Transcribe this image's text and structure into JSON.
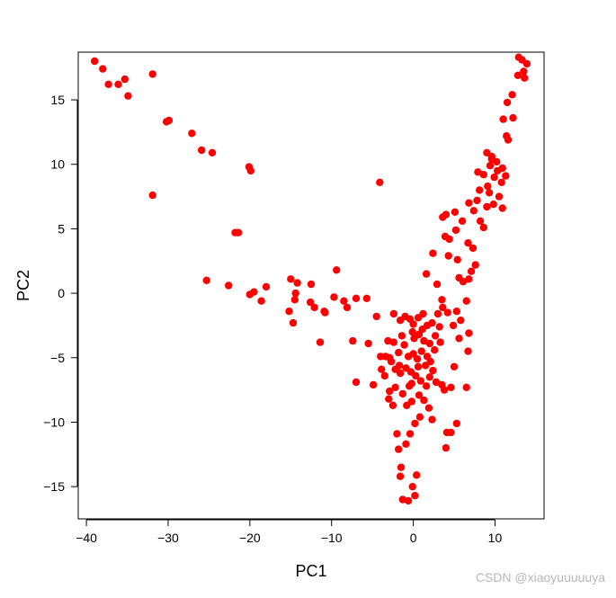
{
  "chart_data": {
    "type": "scatter",
    "xlabel": "PC1",
    "ylabel": "PC2",
    "xlim": [
      -41,
      16
    ],
    "ylim": [
      -17.5,
      18.7
    ],
    "x_ticks": [
      -40,
      -30,
      -20,
      -10,
      0,
      10
    ],
    "y_ticks": [
      -15,
      -10,
      -5,
      0,
      5,
      10,
      15
    ],
    "x_tick_labels": [
      "−40",
      "−30",
      "−20",
      "−10",
      "0",
      "10"
    ],
    "y_tick_labels": [
      "−15",
      "−10",
      "−5",
      "0",
      "5",
      "10",
      "15"
    ],
    "grid": false,
    "legend": "none",
    "marker_color": "#ff0000",
    "series": [
      {
        "points": [
          [
            -39.0,
            18.0
          ],
          [
            -38.0,
            17.4
          ],
          [
            -37.3,
            16.2
          ],
          [
            -36.1,
            16.2
          ],
          [
            -35.3,
            16.6
          ],
          [
            -34.9,
            15.3
          ],
          [
            -31.9,
            17.0
          ],
          [
            -30.2,
            13.3
          ],
          [
            -29.9,
            13.4
          ],
          [
            -27.1,
            12.4
          ],
          [
            -25.9,
            11.1
          ],
          [
            -24.6,
            10.9
          ],
          [
            -31.9,
            7.6
          ],
          [
            -20.1,
            9.8
          ],
          [
            -19.9,
            9.5
          ],
          [
            -21.8,
            4.7
          ],
          [
            -21.4,
            4.7
          ],
          [
            -25.3,
            1.0
          ],
          [
            -22.6,
            0.6
          ],
          [
            -20.0,
            -0.1
          ],
          [
            -19.5,
            0.1
          ],
          [
            -18.6,
            -0.6
          ],
          [
            -18.0,
            0.5
          ],
          [
            -15.0,
            1.1
          ],
          [
            -14.4,
            0.0
          ],
          [
            -14.2,
            0.8
          ],
          [
            -14.5,
            -0.5
          ],
          [
            -15.2,
            -1.4
          ],
          [
            -14.7,
            -2.3
          ],
          [
            -12.5,
            0.7
          ],
          [
            -12.6,
            -0.7
          ],
          [
            -12.1,
            -1.1
          ],
          [
            -10.9,
            -1.4
          ],
          [
            -10.8,
            -1.5
          ],
          [
            -9.7,
            -0.3
          ],
          [
            -9.4,
            1.8
          ],
          [
            -8.5,
            -0.6
          ],
          [
            -8.1,
            -1.1
          ],
          [
            -7.0,
            -0.4
          ],
          [
            -7.4,
            -3.7
          ],
          [
            -11.4,
            -3.8
          ],
          [
            -7.0,
            -6.9
          ],
          [
            -5.7,
            -0.4
          ],
          [
            -4.1,
            8.6
          ],
          [
            -5.5,
            -3.9
          ],
          [
            -4.5,
            -1.8
          ],
          [
            -4.9,
            -7.1
          ],
          [
            -4.0,
            -4.9
          ],
          [
            -3.9,
            -5.9
          ],
          [
            -3.5,
            -6.4
          ],
          [
            -3.0,
            -8.2
          ],
          [
            -2.5,
            -8.7
          ],
          [
            -2.0,
            -10.9
          ],
          [
            -1.8,
            -12.1
          ],
          [
            -1.5,
            -13.5
          ],
          [
            -1.6,
            -14.2
          ],
          [
            -1.3,
            -16.0
          ],
          [
            -0.6,
            -16.1
          ],
          [
            -0.1,
            -15.0
          ],
          [
            0.2,
            -15.7
          ],
          [
            0.4,
            -14.1
          ],
          [
            -0.9,
            -11.7
          ],
          [
            -0.4,
            -10.9
          ],
          [
            0.2,
            -10.1
          ],
          [
            0.8,
            -9.6
          ],
          [
            -0.8,
            -8.7
          ],
          [
            -0.2,
            -8.4
          ],
          [
            0.7,
            -7.9
          ],
          [
            1.3,
            -8.3
          ],
          [
            1.9,
            -8.9
          ],
          [
            2.3,
            -9.8
          ],
          [
            2.0,
            -6.5
          ],
          [
            2.8,
            -6.9
          ],
          [
            3.5,
            -7.1
          ],
          [
            3.8,
            -7.5
          ],
          [
            -2.4,
            -1.6
          ],
          [
            -1.6,
            -2.1
          ],
          [
            -1.0,
            -1.8
          ],
          [
            -0.4,
            -2.0
          ],
          [
            0.0,
            -2.4
          ],
          [
            0.6,
            -1.9
          ],
          [
            1.2,
            -1.6
          ],
          [
            1.7,
            -2.5
          ],
          [
            2.3,
            -2.3
          ],
          [
            3.0,
            -1.6
          ],
          [
            -3.1,
            -3.7
          ],
          [
            -2.4,
            -3.8
          ],
          [
            -1.8,
            -4.6
          ],
          [
            -1.1,
            -4.0
          ],
          [
            -0.6,
            -4.9
          ],
          [
            0.0,
            -4.7
          ],
          [
            0.5,
            -5.1
          ],
          [
            1.0,
            -4.5
          ],
          [
            1.5,
            -5.6
          ],
          [
            2.1,
            -5.3
          ],
          [
            -3.4,
            -4.9
          ],
          [
            -2.7,
            -5.3
          ],
          [
            -2.2,
            -5.9
          ],
          [
            -1.6,
            -6.2
          ],
          [
            -0.9,
            -5.8
          ],
          [
            -0.3,
            -6.1
          ],
          [
            0.3,
            -6.4
          ],
          [
            0.9,
            -6.8
          ],
          [
            1.6,
            -7.2
          ],
          [
            -2.9,
            -7.6
          ],
          [
            -2.2,
            -7.3
          ],
          [
            -1.3,
            -7.8
          ],
          [
            -0.5,
            -7.2
          ],
          [
            0.1,
            -3.5
          ],
          [
            0.7,
            -3.2
          ],
          [
            1.3,
            -3.7
          ],
          [
            2.7,
            -3.3
          ],
          [
            3.2,
            -2.6
          ],
          [
            3.6,
            -1.1
          ],
          [
            4.2,
            -1.5
          ],
          [
            2.9,
            0.7
          ],
          [
            3.5,
            -0.5
          ],
          [
            1.6,
            1.5
          ],
          [
            2.4,
            3.1
          ],
          [
            3.9,
            4.4
          ],
          [
            4.4,
            4.2
          ],
          [
            5.2,
            4.9
          ],
          [
            3.6,
            5.9
          ],
          [
            4.0,
            6.1
          ],
          [
            5.1,
            6.3
          ],
          [
            6.0,
            5.6
          ],
          [
            6.7,
            3.9
          ],
          [
            7.3,
            3.5
          ],
          [
            7.6,
            2.2
          ],
          [
            7.1,
            1.7
          ],
          [
            6.8,
            1.1
          ],
          [
            5.4,
            2.6
          ],
          [
            4.3,
            2.9
          ],
          [
            5.6,
            1.2
          ],
          [
            6.1,
            0.9
          ],
          [
            6.5,
            -0.6
          ],
          [
            5.3,
            -1.4
          ],
          [
            5.8,
            -2.1
          ],
          [
            4.9,
            -2.5
          ],
          [
            6.8,
            -3.1
          ],
          [
            5.6,
            -3.5
          ],
          [
            6.7,
            -4.5
          ],
          [
            5.0,
            -5.7
          ],
          [
            6.5,
            -7.3
          ],
          [
            4.6,
            -7.3
          ],
          [
            5.3,
            -10.1
          ],
          [
            4.1,
            -10.8
          ],
          [
            4.6,
            -10.8
          ],
          [
            4.0,
            -12.0
          ],
          [
            6.8,
            7.0
          ],
          [
            7.8,
            7.2
          ],
          [
            7.4,
            6.4
          ],
          [
            8.2,
            5.6
          ],
          [
            8.6,
            5.1
          ],
          [
            9.0,
            6.7
          ],
          [
            9.3,
            7.8
          ],
          [
            9.8,
            6.9
          ],
          [
            8.1,
            8.0
          ],
          [
            7.9,
            9.4
          ],
          [
            8.6,
            9.2
          ],
          [
            9.1,
            8.3
          ],
          [
            9.4,
            9.9
          ],
          [
            9.9,
            9.0
          ],
          [
            10.3,
            9.5
          ],
          [
            9.6,
            10.4
          ],
          [
            10.2,
            10.2
          ],
          [
            10.9,
            9.7
          ],
          [
            11.3,
            9.1
          ],
          [
            10.8,
            8.6
          ],
          [
            9.0,
            10.9
          ],
          [
            9.6,
            10.6
          ],
          [
            10.5,
            7.5
          ],
          [
            10.9,
            6.6
          ],
          [
            11.4,
            12.2
          ],
          [
            11.6,
            11.9
          ],
          [
            11.0,
            13.5
          ],
          [
            11.5,
            14.8
          ],
          [
            12.1,
            15.4
          ],
          [
            12.2,
            13.6
          ],
          [
            12.8,
            16.9
          ],
          [
            12.9,
            18.3
          ],
          [
            13.3,
            18.1
          ],
          [
            13.6,
            16.7
          ],
          [
            13.9,
            17.8
          ],
          [
            13.5,
            17.2
          ],
          [
            1.1,
            -2.8
          ],
          [
            2.0,
            -3.9
          ],
          [
            -0.1,
            -3.0
          ],
          [
            -1.4,
            -3.3
          ],
          [
            -2.9,
            -5.0
          ],
          [
            -1.7,
            -5.6
          ],
          [
            0.6,
            -5.7
          ],
          [
            1.7,
            -4.9
          ],
          [
            2.6,
            -4.4
          ],
          [
            3.3,
            -3.8
          ],
          [
            2.4,
            -6.0
          ],
          [
            -0.2,
            -7.0
          ]
        ]
      }
    ],
    "watermark": "CSDN @xiaoyuuuuuya"
  }
}
